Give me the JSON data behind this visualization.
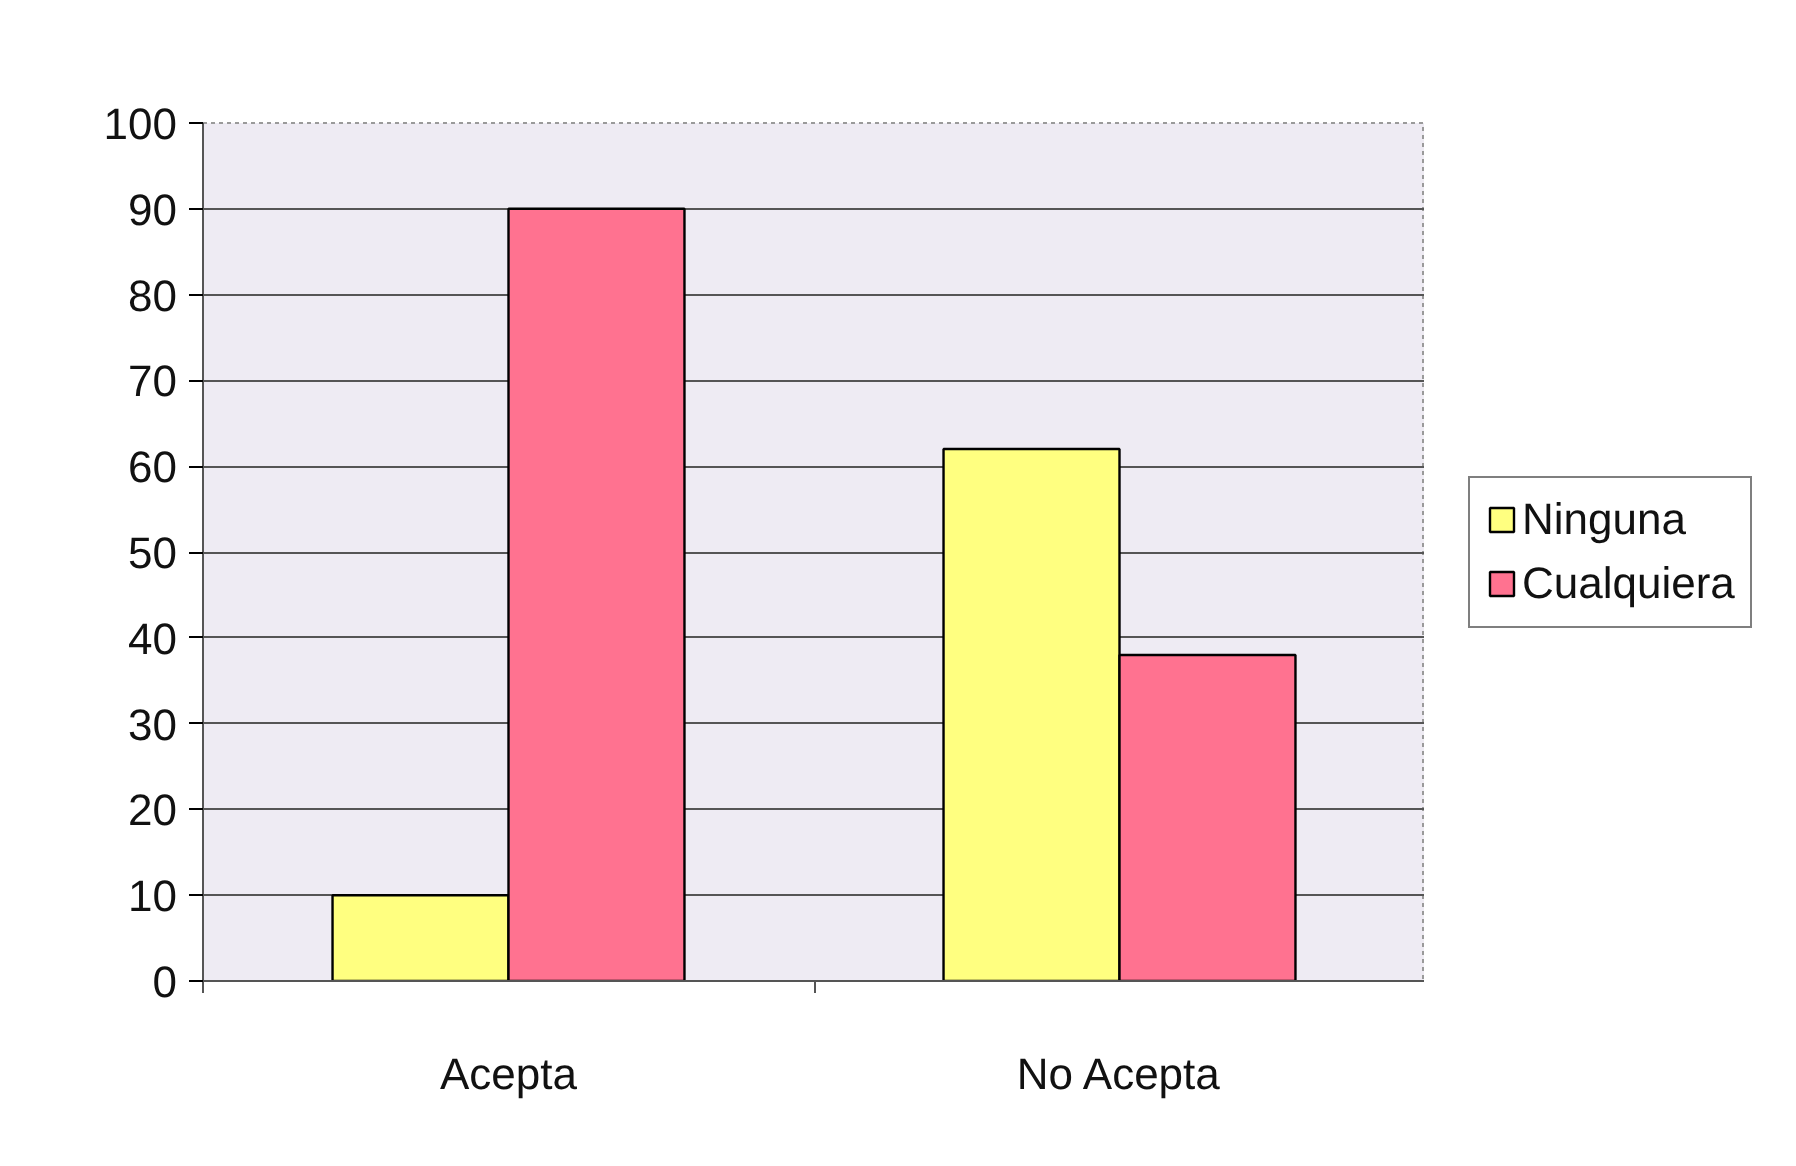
{
  "chart_data": {
    "type": "bar",
    "categories": [
      "Acepta",
      "No Acepta"
    ],
    "series": [
      {
        "name": "Ninguna",
        "color": "#ffff80",
        "values": [
          10,
          62
        ]
      },
      {
        "name": "Cualquiera",
        "color": "#ff7290",
        "values": [
          90,
          38
        ]
      }
    ],
    "ylim": [
      0,
      100
    ],
    "yticks": [
      0,
      10,
      20,
      30,
      40,
      50,
      60,
      70,
      80,
      90,
      100
    ],
    "grid": "y",
    "legend": "right"
  }
}
